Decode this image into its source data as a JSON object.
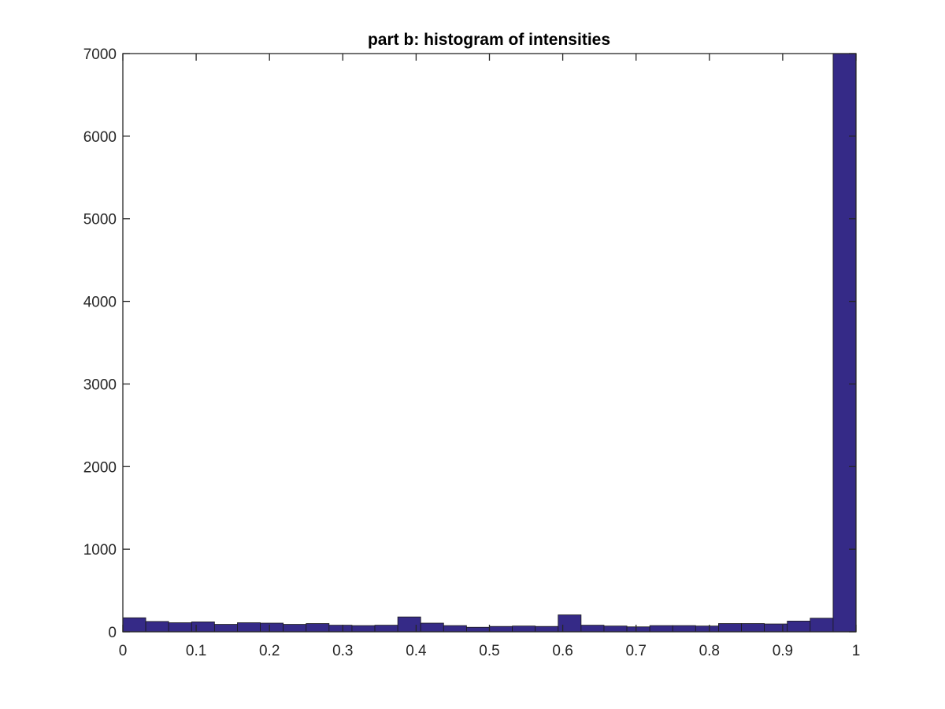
{
  "chart_data": {
    "type": "bar",
    "title": "part b: histogram of intensities",
    "xlabel": "",
    "ylabel": "",
    "xlim": [
      0,
      1
    ],
    "ylim": [
      0,
      7000
    ],
    "grid": false,
    "bar_color": "#352a87",
    "x_ticks": [
      "0",
      "0.1",
      "0.2",
      "0.3",
      "0.4",
      "0.5",
      "0.6",
      "0.7",
      "0.8",
      "0.9",
      "1"
    ],
    "y_ticks": [
      "0",
      "1000",
      "2000",
      "3000",
      "4000",
      "5000",
      "6000",
      "7000"
    ],
    "bins": 32,
    "values": [
      170,
      125,
      110,
      120,
      90,
      110,
      105,
      90,
      100,
      80,
      75,
      80,
      180,
      105,
      75,
      55,
      65,
      70,
      65,
      205,
      80,
      70,
      60,
      75,
      75,
      70,
      100,
      100,
      95,
      130,
      165,
      7000
    ]
  }
}
